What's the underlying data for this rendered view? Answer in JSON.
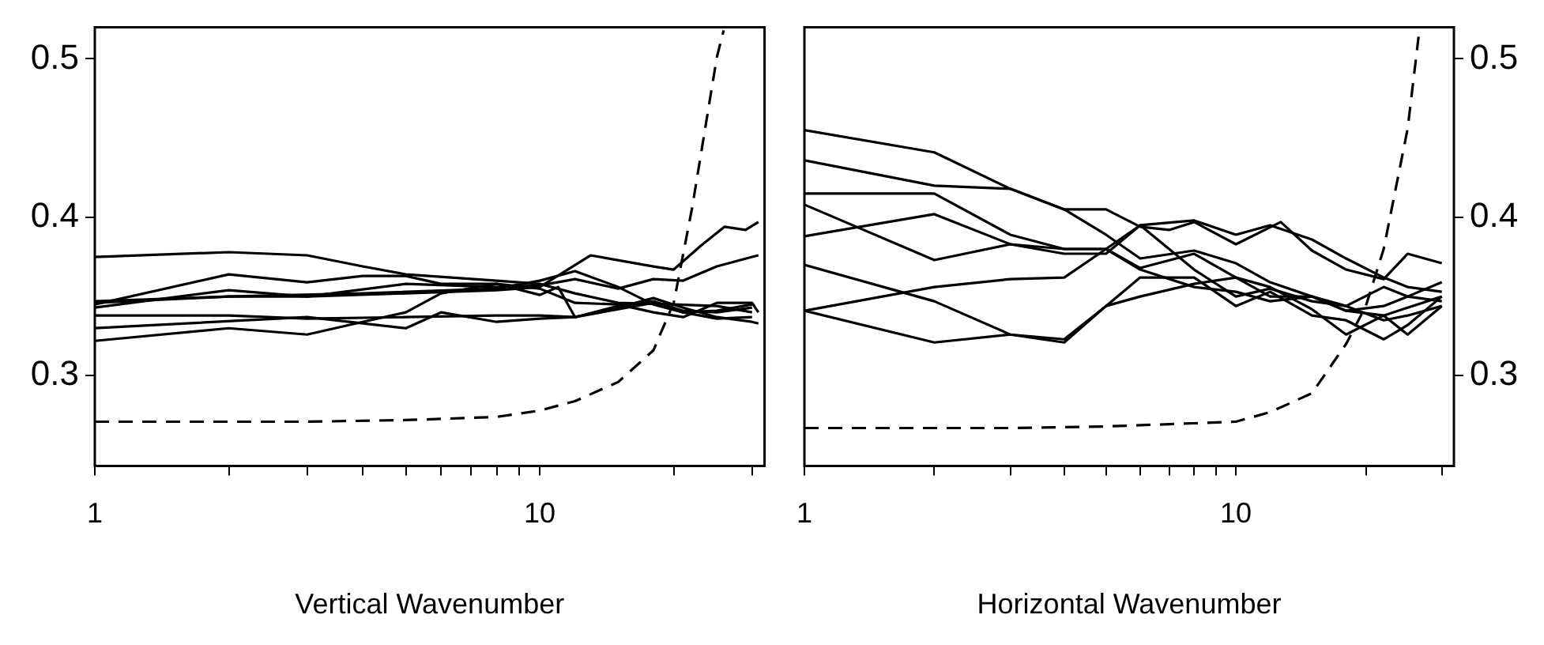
{
  "chart_data": [
    {
      "type": "line",
      "xlabel": "Vertical Wavenumber",
      "log": "x",
      "grid": false,
      "legend": false,
      "marker": "none",
      "line_style": "solid",
      "xlim": [
        1,
        32
      ],
      "xticks": [
        {
          "value": 1,
          "label": "1"
        },
        {
          "value": 2,
          "label": null
        },
        {
          "value": 3,
          "label": null
        },
        {
          "value": 4,
          "label": null
        },
        {
          "value": 5,
          "label": null
        },
        {
          "value": 6,
          "label": null
        },
        {
          "value": 7,
          "label": null
        },
        {
          "value": 8,
          "label": null
        },
        {
          "value": 9,
          "label": null
        },
        10,
        {
          "value": 20,
          "label": null
        },
        {
          "value": 30,
          "label": null
        }
      ],
      "ylim": [
        0.243,
        0.52
      ],
      "yticks": [
        0.3,
        0.4,
        0.5
      ],
      "series": [
        {
          "color": "#000000",
          "x": [
            1,
            2,
            3,
            4,
            5,
            8,
            10,
            12,
            15,
            20,
            25,
            30
          ],
          "values": [
            0.375,
            0.378,
            0.376,
            0.369,
            0.364,
            0.36,
            0.358,
            0.352,
            0.346,
            0.345,
            0.344,
            0.34
          ]
        },
        {
          "color": "#000000",
          "x": [
            1,
            2,
            3,
            5,
            8,
            10,
            13,
            18,
            20,
            23,
            26,
            29,
            31
          ],
          "values": [
            0.347,
            0.35,
            0.35,
            0.352,
            0.354,
            0.356,
            0.376,
            0.369,
            0.367,
            0.382,
            0.394,
            0.392,
            0.397
          ]
        },
        {
          "color": "#000000",
          "x": [
            1,
            2,
            3,
            5,
            8,
            10,
            12,
            15,
            18,
            21,
            25,
            30,
            31
          ],
          "values": [
            0.343,
            0.354,
            0.35,
            0.358,
            0.356,
            0.357,
            0.361,
            0.355,
            0.361,
            0.36,
            0.369,
            0.375,
            0.376
          ]
        },
        {
          "color": "#000000",
          "x": [
            1,
            2,
            4,
            8,
            10,
            12,
            15,
            18,
            21,
            25,
            30
          ],
          "values": [
            0.346,
            0.35,
            0.352,
            0.355,
            0.36,
            0.366,
            0.356,
            0.345,
            0.34,
            0.341,
            0.345
          ]
        },
        {
          "color": "#000000",
          "x": [
            1,
            2,
            3,
            5,
            8,
            10,
            12,
            15,
            18,
            21,
            25,
            30
          ],
          "values": [
            0.338,
            0.338,
            0.336,
            0.337,
            0.338,
            0.338,
            0.337,
            0.344,
            0.347,
            0.341,
            0.34,
            0.343
          ]
        },
        {
          "color": "#000000",
          "x": [
            1,
            3,
            5,
            6,
            8,
            10,
            12,
            15,
            18,
            21,
            25,
            30
          ],
          "values": [
            0.33,
            0.337,
            0.33,
            0.34,
            0.334,
            0.336,
            0.337,
            0.342,
            0.346,
            0.34,
            0.336,
            0.337
          ]
        },
        {
          "color": "#000000",
          "x": [
            1,
            2,
            3,
            4,
            5,
            6,
            8,
            10,
            12,
            15,
            18,
            21,
            25,
            30,
            31
          ],
          "values": [
            0.322,
            0.33,
            0.326,
            0.334,
            0.34,
            0.352,
            0.358,
            0.355,
            0.346,
            0.345,
            0.34,
            0.337,
            0.346,
            0.346,
            0.34
          ]
        },
        {
          "color": "#000000",
          "x": [
            1,
            2,
            3,
            4,
            5,
            6,
            8,
            10,
            11,
            12,
            15,
            18,
            21,
            25,
            30,
            31
          ],
          "values": [
            0.345,
            0.364,
            0.359,
            0.363,
            0.363,
            0.358,
            0.358,
            0.351,
            0.356,
            0.337,
            0.343,
            0.349,
            0.343,
            0.337,
            0.334,
            0.333
          ]
        },
        {
          "color": "#000000",
          "line_style": "dashed",
          "x": [
            1,
            3,
            5,
            8,
            10,
            12,
            15,
            18,
            20,
            22,
            25,
            25.9
          ],
          "values": [
            0.271,
            0.271,
            0.272,
            0.274,
            0.278,
            0.284,
            0.296,
            0.316,
            0.346,
            0.406,
            0.501,
            0.518
          ]
        }
      ]
    },
    {
      "type": "line",
      "xlabel": "Horizontal Wavenumber",
      "log": "x",
      "grid": false,
      "legend": false,
      "marker": "none",
      "line_style": "solid",
      "xlim": [
        1,
        32
      ],
      "xticks": [
        {
          "value": 1,
          "label": "1"
        },
        {
          "value": 2,
          "label": null
        },
        {
          "value": 3,
          "label": null
        },
        {
          "value": 4,
          "label": null
        },
        {
          "value": 5,
          "label": null
        },
        {
          "value": 6,
          "label": null
        },
        {
          "value": 7,
          "label": null
        },
        {
          "value": 8,
          "label": null
        },
        {
          "value": 9,
          "label": null
        },
        10,
        {
          "value": 20,
          "label": null
        },
        {
          "value": 30,
          "label": null
        }
      ],
      "y2lim": [
        0.243,
        0.52
      ],
      "y2ticks": [
        0.3,
        0.4,
        0.5
      ],
      "series": [
        {
          "color": "#000000",
          "axis": "y2",
          "x": [
            1,
            2,
            3,
            4,
            5,
            6,
            8,
            10,
            12,
            15,
            18,
            22,
            25,
            30
          ],
          "values": [
            0.455,
            0.441,
            0.418,
            0.405,
            0.389,
            0.374,
            0.379,
            0.371,
            0.359,
            0.35,
            0.341,
            0.344,
            0.35,
            0.347
          ]
        },
        {
          "color": "#000000",
          "axis": "y2",
          "x": [
            1,
            2,
            3,
            4,
            5,
            6,
            7,
            8,
            10,
            12.7,
            15,
            18,
            22,
            25,
            30
          ],
          "values": [
            0.436,
            0.42,
            0.418,
            0.405,
            0.405,
            0.394,
            0.392,
            0.397,
            0.383,
            0.397,
            0.379,
            0.367,
            0.361,
            0.377,
            0.371
          ]
        },
        {
          "color": "#000000",
          "axis": "y2",
          "x": [
            1,
            2,
            3,
            4,
            5,
            6,
            8,
            10,
            12,
            15,
            18,
            22,
            25,
            30
          ],
          "values": [
            0.415,
            0.415,
            0.389,
            0.38,
            0.38,
            0.368,
            0.377,
            0.362,
            0.35,
            0.35,
            0.341,
            0.338,
            0.343,
            0.35
          ]
        },
        {
          "color": "#000000",
          "axis": "y2",
          "x": [
            1,
            2,
            3,
            4,
            5,
            6,
            8,
            10,
            12,
            15,
            18,
            22,
            25,
            30
          ],
          "values": [
            0.408,
            0.373,
            0.383,
            0.38,
            0.38,
            0.367,
            0.356,
            0.353,
            0.347,
            0.35,
            0.344,
            0.356,
            0.35,
            0.359
          ]
        },
        {
          "color": "#000000",
          "axis": "y2",
          "x": [
            1,
            2,
            3,
            4,
            5,
            6,
            8,
            10,
            12,
            15,
            18,
            22,
            25,
            30
          ],
          "values": [
            0.388,
            0.402,
            0.383,
            0.377,
            0.377,
            0.395,
            0.367,
            0.35,
            0.355,
            0.347,
            0.344,
            0.335,
            0.338,
            0.344
          ]
        },
        {
          "color": "#000000",
          "axis": "y2",
          "x": [
            1,
            2,
            3,
            4,
            5,
            6,
            8,
            10,
            12,
            15,
            18,
            22,
            25,
            30
          ],
          "values": [
            0.37,
            0.347,
            0.326,
            0.323,
            0.344,
            0.362,
            0.362,
            0.344,
            0.353,
            0.338,
            0.335,
            0.323,
            0.332,
            0.35
          ]
        },
        {
          "color": "#000000",
          "axis": "y2",
          "x": [
            1,
            2,
            3,
            4,
            5,
            6,
            8,
            10,
            12,
            15,
            18,
            22,
            25,
            30
          ],
          "values": [
            0.341,
            0.356,
            0.361,
            0.362,
            0.38,
            0.395,
            0.398,
            0.389,
            0.395,
            0.386,
            0.374,
            0.362,
            0.356,
            0.353
          ]
        },
        {
          "color": "#000000",
          "axis": "y2",
          "x": [
            1,
            2,
            3,
            4,
            5,
            6,
            8,
            10,
            12,
            15,
            18,
            22,
            25,
            30
          ],
          "values": [
            0.341,
            0.321,
            0.326,
            0.321,
            0.344,
            0.35,
            0.358,
            0.362,
            0.356,
            0.342,
            0.326,
            0.338,
            0.326,
            0.344
          ]
        },
        {
          "color": "#000000",
          "axis": "y2",
          "line_style": "dashed",
          "x": [
            1,
            3,
            5,
            8,
            10,
            12,
            15,
            18,
            20,
            22,
            25,
            26.5
          ],
          "values": [
            0.267,
            0.267,
            0.268,
            0.27,
            0.271,
            0.277,
            0.289,
            0.32,
            0.344,
            0.38,
            0.456,
            0.514
          ]
        }
      ]
    }
  ]
}
